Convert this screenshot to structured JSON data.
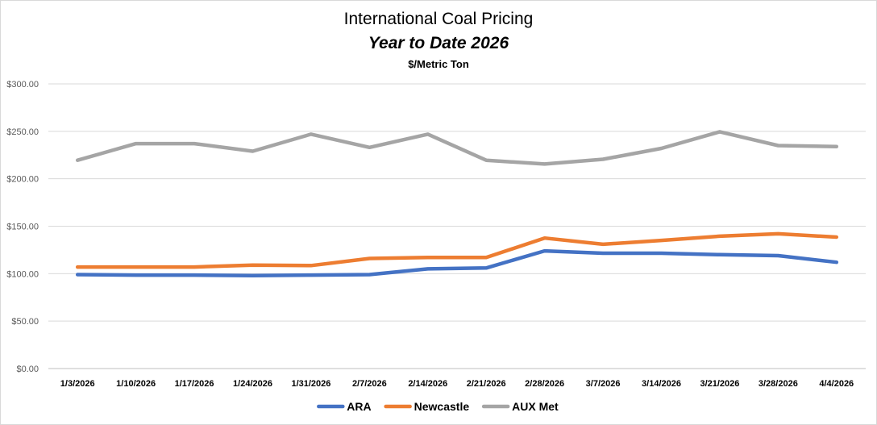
{
  "chart_data": {
    "type": "line",
    "title": "International Coal Pricing",
    "subtitle": "Year to Date 2026",
    "ylabel_note": "$/Metric Ton",
    "categories": [
      "1/3/2026",
      "1/10/2026",
      "1/17/2026",
      "1/24/2026",
      "1/31/2026",
      "2/7/2026",
      "2/14/2026",
      "2/21/2026",
      "2/28/2026",
      "3/7/2026",
      "3/14/2026",
      "3/21/2026",
      "3/28/2026",
      "4/4/2026"
    ],
    "y_ticks": [
      "$0.00",
      "$50.00",
      "$100.00",
      "$150.00",
      "$200.00",
      "$250.00",
      "$300.00"
    ],
    "ylim": [
      0,
      300
    ],
    "grid": true,
    "legend_position": "bottom",
    "series": [
      {
        "name": "ARA",
        "color": "#4472c4",
        "values": [
          99,
          98.5,
          98.5,
          98,
          98.5,
          99,
          105,
          106,
          124,
          121.5,
          121.5,
          120,
          119,
          112
        ]
      },
      {
        "name": "Newcastle",
        "color": "#ed7d31",
        "values": [
          107,
          107,
          107,
          109,
          108.5,
          116,
          117,
          117,
          137.5,
          131,
          135,
          139.5,
          142,
          138.5
        ]
      },
      {
        "name": "AUX Met",
        "color": "#a5a5a5",
        "values": [
          219.5,
          237,
          237,
          229,
          247,
          233,
          247,
          219.5,
          215.5,
          220.5,
          232,
          249.5,
          235,
          234
        ]
      }
    ]
  }
}
